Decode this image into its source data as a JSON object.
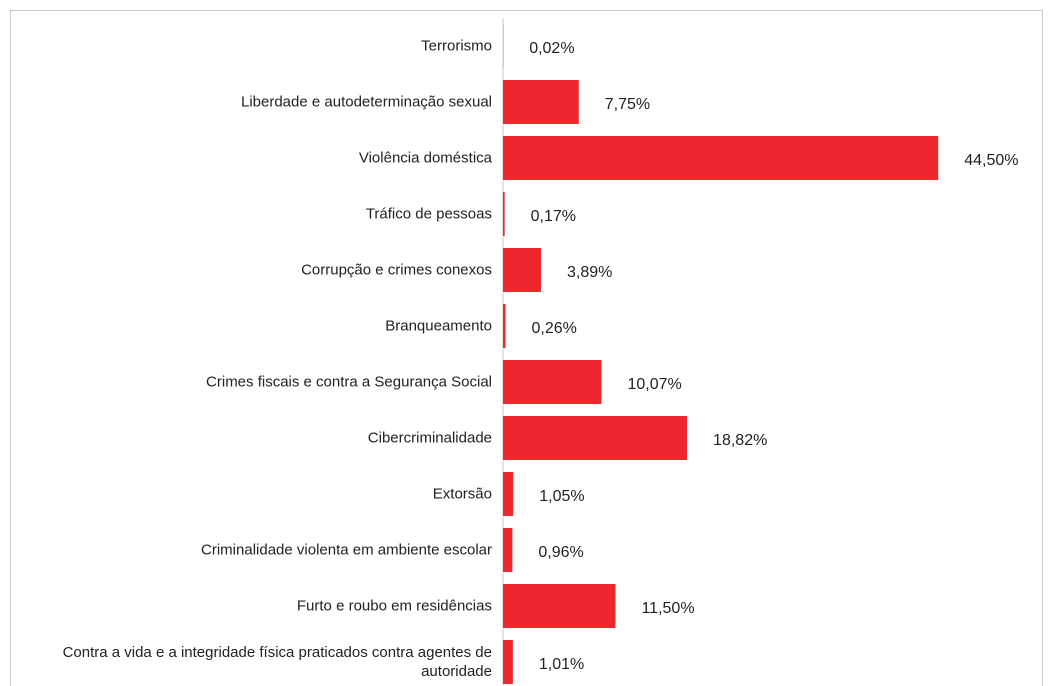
{
  "chart_data": {
    "type": "bar",
    "orientation": "horizontal",
    "categories": [
      "Terrorismo",
      "Liberdade e autodeterminação sexual",
      "Violência doméstica",
      "Tráfico de pessoas",
      "Corrupção e crimes conexos",
      "Branqueamento",
      "Crimes fiscais e contra a Segurança Social",
      "Cibercriminalidade",
      "Extorsão",
      "Criminalidade violenta em ambiente escolar",
      "Furto e roubo em residências",
      "Contra a vida e a integridade física praticados contra agentes de autoridade"
    ],
    "values": [
      0.02,
      7.75,
      44.5,
      0.17,
      3.89,
      0.26,
      10.07,
      18.82,
      1.05,
      0.96,
      11.5,
      1.01
    ],
    "value_labels": [
      "0,02%",
      "7,75%",
      "44,50%",
      "0,17%",
      "3,89%",
      "0,26%",
      "10,07%",
      "18,82%",
      "1,05%",
      "0,96%",
      "11,50%",
      "1,01%"
    ],
    "color": "#ee262e",
    "xlim": [
      0,
      50
    ]
  }
}
